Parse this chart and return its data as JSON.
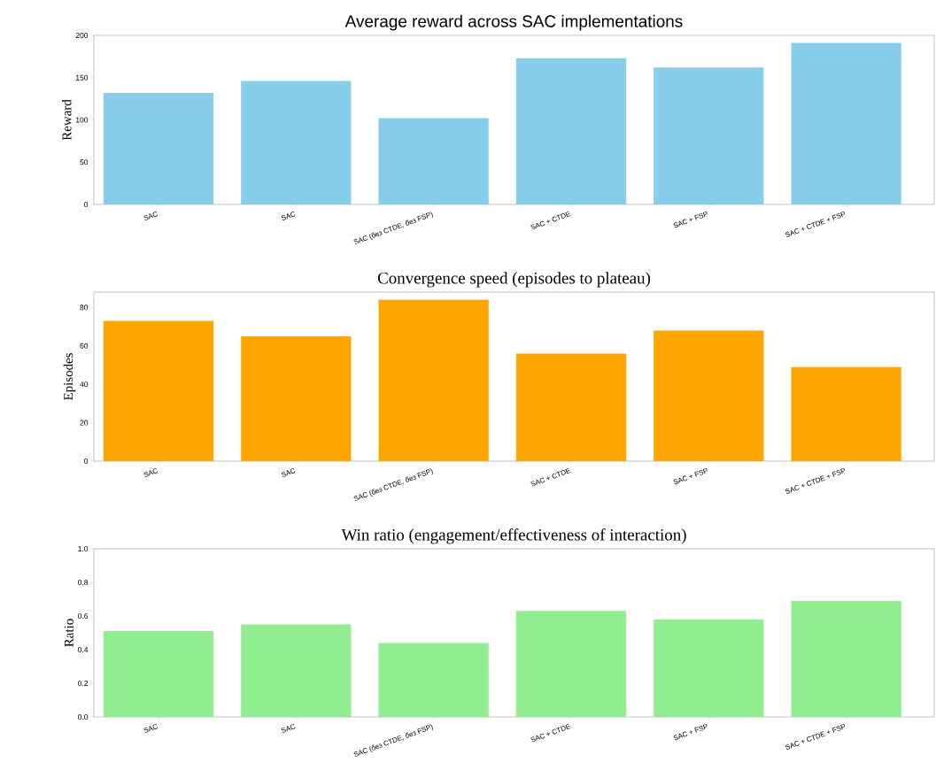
{
  "chart_data": [
    {
      "type": "bar",
      "title": "Average reward across SAC implementations",
      "ylabel": "Reward",
      "categories": [
        "SAC",
        "SAC",
        "SAC (без CTDE, без FSP)",
        "SAC + CTDE",
        "SAC + FSP",
        "SAC + CTDE + FSP"
      ],
      "values": [
        132,
        146,
        102,
        173,
        162,
        191
      ],
      "color": "#87ceeb",
      "ylim": [
        0,
        200
      ],
      "yticks": [
        0,
        50,
        100,
        150,
        200
      ]
    },
    {
      "type": "bar",
      "title": "Convergence speed (episodes to plateau)",
      "ylabel": "Episodes",
      "categories": [
        "SAC",
        "SAC",
        "SAC (без CTDE, без FSP)",
        "SAC + CTDE",
        "SAC + FSP",
        "SAC + CTDE + FSP"
      ],
      "values": [
        73,
        65,
        84,
        56,
        68,
        49
      ],
      "color": "#ffa500",
      "ylim": [
        0,
        88
      ],
      "yticks": [
        0,
        20,
        40,
        60,
        80
      ]
    },
    {
      "type": "bar",
      "title": "Win ratio (engagement/effectiveness of interaction)",
      "ylabel": "Ratio",
      "categories": [
        "SAC",
        "SAC",
        "SAC (без CTDE, без FSP)",
        "SAC + CTDE",
        "SAC + FSP",
        "SAC + CTDE + FSP"
      ],
      "values": [
        0.51,
        0.55,
        0.44,
        0.63,
        0.58,
        0.69
      ],
      "color": "#90ee90",
      "ylim": [
        0,
        1
      ],
      "yticks": [
        {
          "value": 0,
          "label": "0.0"
        },
        {
          "value": 0.2,
          "label": "0.2"
        },
        {
          "value": 0.4,
          "label": "0.4"
        },
        {
          "value": 0.6,
          "label": "0.6"
        },
        {
          "value": 0.8,
          "label": "0.8"
        },
        {
          "value": 1,
          "label": "1.0"
        }
      ]
    }
  ]
}
